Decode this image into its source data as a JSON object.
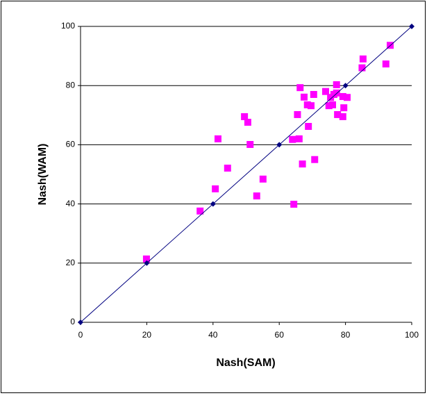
{
  "chart_data": {
    "type": "scatter",
    "x_label": "Nash(SAM)",
    "y_label": "Nash(WAM)",
    "xlim": [
      0,
      100
    ],
    "xticks": [
      0,
      20,
      40,
      60,
      80,
      100
    ],
    "ylim": [
      0,
      100
    ],
    "yticks": [
      0,
      20,
      40,
      60,
      80,
      100
    ],
    "grid": "y",
    "series": [
      {
        "color": "#ff00ff",
        "marker": "square",
        "line": false,
        "x": [
          19.9,
          36.1,
          40.7,
          41.5,
          44.4,
          51.2,
          49.5,
          50.5,
          55.1,
          53.2,
          64.4,
          64,
          66,
          67,
          70.7,
          66.3,
          65.5,
          68.5,
          67.5,
          68.8,
          69.6,
          70.4,
          74,
          75,
          75.5,
          76.1,
          76.5,
          77.3,
          77.3,
          77.6,
          79.2,
          79.5,
          79.2,
          80.5,
          85,
          85.3,
          92.2,
          93.5
        ],
        "values": [
          21.4,
          37.6,
          45.1,
          62.0,
          52.1,
          60.1,
          69.5,
          67.6,
          48.4,
          42.7,
          39.9,
          61.8,
          62,
          53.5,
          55,
          79.3,
          70.2,
          73.5,
          76.1,
          66.2,
          73.2,
          77,
          78,
          73.2,
          76,
          73.5,
          77,
          80.3,
          77.5,
          70.2,
          69.5,
          72.5,
          76.3,
          76,
          86,
          89,
          87.3,
          93.6
        ]
      },
      {
        "color": "#000080",
        "marker": "diamond",
        "line": true,
        "x": [
          0,
          20,
          40,
          60,
          80,
          100
        ],
        "values": [
          0,
          20,
          40,
          60,
          80,
          100
        ]
      }
    ]
  }
}
